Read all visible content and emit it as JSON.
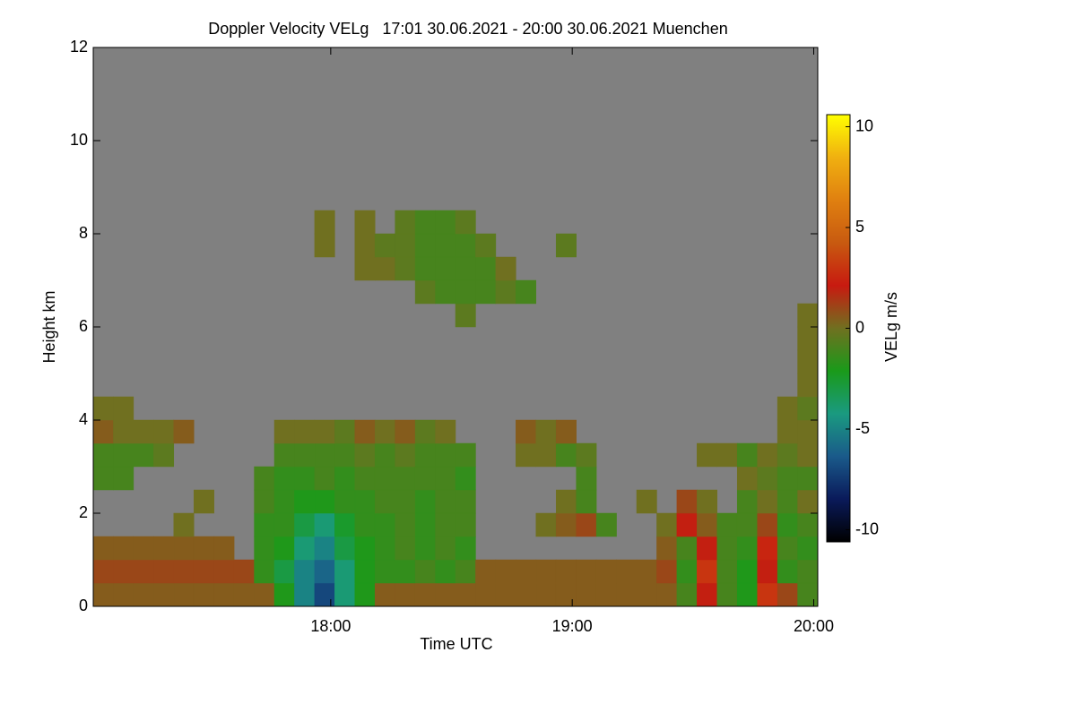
{
  "chart_data": {
    "type": "heatmap",
    "title": "Doppler Velocity VELg   17:01 30.06.2021 - 20:00 30.06.2021 Muenchen",
    "x_label": "Time UTC",
    "y_label": "Height km",
    "colorbar_label": "VELg m/s",
    "xlim": [
      1021,
      1201
    ],
    "ylim": [
      0,
      12
    ],
    "zlim": [
      -10.6,
      10.6
    ],
    "xticks": [
      {
        "value": 1080,
        "label": "18:00"
      },
      {
        "value": 1140,
        "label": "19:00"
      },
      {
        "value": 1200,
        "label": "20:00"
      }
    ],
    "yticks": [
      0,
      2,
      4,
      6,
      8,
      10,
      12
    ],
    "zticks": [
      -10,
      -5,
      0,
      5,
      10
    ],
    "background": "#808080",
    "colors": [
      "#000000",
      "#0a1a5a",
      "#1a5a8a",
      "#1a9a80",
      "#1a9a1a",
      "#707020",
      "#c81a10",
      "#c85a10",
      "#e08010",
      "#f0b010",
      "#ffff00"
    ],
    "x_edges": [
      1021,
      1026,
      1031,
      1036,
      1041,
      1046,
      1051,
      1056,
      1061,
      1066,
      1071,
      1076,
      1081,
      1086,
      1091,
      1096,
      1101,
      1106,
      1111,
      1116,
      1121,
      1126,
      1131,
      1136,
      1141,
      1146,
      1151,
      1156,
      1161,
      1166,
      1171,
      1176,
      1181,
      1186,
      1191,
      1196,
      1201
    ],
    "y_edges": [
      0,
      0.5,
      1,
      1.5,
      2,
      2.5,
      3,
      3.5,
      4,
      4.5,
      5,
      5.5,
      6,
      6.5,
      7,
      7.5,
      8,
      8.5,
      9,
      9.5,
      10,
      10.5,
      11,
      11.5,
      12
    ],
    "z": [
      [
        0.5,
        0.5,
        0.5,
        0.5,
        0.5,
        0.5,
        0.5,
        0.5,
        0.5,
        -2,
        -5,
        -7,
        -4,
        -2,
        0.5,
        0.5,
        0.5,
        0.5,
        0.5,
        0.5,
        0.5,
        0.5,
        0.5,
        0.5,
        0.5,
        0.5,
        0.5,
        0.5,
        0.5,
        -1,
        2,
        -1,
        -2,
        3,
        1,
        -1
      ],
      [
        1,
        1,
        1,
        1,
        1,
        1,
        1,
        1,
        -1.5,
        -3,
        -5,
        -6,
        -4,
        -2,
        -1.5,
        -1.5,
        -1,
        -1.5,
        -1,
        0.5,
        0.5,
        0.5,
        0.5,
        0.5,
        0.5,
        0.5,
        0.5,
        0.5,
        1,
        -1.5,
        3,
        -1,
        -2,
        2,
        -1.5,
        -1
      ],
      [
        0.5,
        0.5,
        0.5,
        0.5,
        0.5,
        0.5,
        0.5,
        null,
        -1.5,
        -2,
        -4,
        -5,
        -3,
        -2,
        -1.5,
        -1,
        -1.5,
        -1,
        -1.5,
        null,
        null,
        null,
        null,
        null,
        null,
        null,
        null,
        null,
        0.5,
        -1,
        2,
        -1,
        -1.5,
        2.5,
        -1,
        -1.5
      ],
      [
        null,
        null,
        null,
        null,
        0,
        null,
        null,
        null,
        -1.5,
        -1.5,
        -3,
        -4,
        -2.5,
        -1.5,
        -1.5,
        -1,
        -1.5,
        -1,
        -1,
        null,
        null,
        null,
        0,
        0.5,
        1,
        -1,
        null,
        null,
        0,
        2,
        0.5,
        -1,
        -1,
        1,
        -1.5,
        -1
      ],
      [
        null,
        null,
        null,
        null,
        null,
        0,
        null,
        null,
        -1,
        -1.5,
        -2,
        -2,
        -1.5,
        -1.5,
        -1,
        -1,
        -1.5,
        -1,
        -1,
        null,
        null,
        null,
        null,
        0,
        -1,
        null,
        null,
        0,
        null,
        1,
        0,
        null,
        -1,
        0,
        -1,
        0
      ],
      [
        -1,
        -1,
        null,
        null,
        null,
        null,
        null,
        null,
        -1,
        -1.5,
        -1.5,
        -1,
        -1.5,
        -1,
        -1,
        -1,
        -1,
        -1,
        -1.5,
        null,
        null,
        null,
        null,
        null,
        -1,
        null,
        null,
        null,
        null,
        null,
        null,
        null,
        0,
        -0.5,
        -1,
        -1
      ],
      [
        -1,
        -1,
        -1,
        -0.5,
        null,
        null,
        null,
        null,
        null,
        -1,
        -1,
        -1,
        -1,
        -0.5,
        -1,
        -0.5,
        -1,
        -1,
        -1,
        null,
        null,
        0,
        0,
        -1,
        -0.5,
        null,
        null,
        null,
        null,
        null,
        0,
        0,
        -1,
        0,
        -0.5,
        0
      ],
      [
        0.5,
        0,
        0,
        0,
        0.5,
        null,
        null,
        null,
        null,
        0,
        0,
        0,
        -0.5,
        0.5,
        0,
        0.5,
        -0.5,
        0,
        null,
        null,
        null,
        0.5,
        0,
        0.5,
        null,
        null,
        null,
        null,
        null,
        null,
        null,
        null,
        null,
        null,
        0,
        0
      ],
      [
        0,
        0,
        null,
        null,
        null,
        null,
        null,
        null,
        null,
        null,
        null,
        null,
        null,
        null,
        null,
        null,
        null,
        null,
        null,
        null,
        null,
        null,
        null,
        null,
        null,
        null,
        null,
        null,
        null,
        null,
        null,
        null,
        null,
        null,
        0,
        -0.5
      ],
      [
        null,
        null,
        null,
        null,
        null,
        null,
        null,
        null,
        null,
        null,
        null,
        null,
        null,
        null,
        null,
        null,
        null,
        null,
        null,
        null,
        null,
        null,
        null,
        null,
        null,
        null,
        null,
        null,
        null,
        null,
        null,
        null,
        null,
        null,
        null,
        0
      ],
      [
        null,
        null,
        null,
        null,
        null,
        null,
        null,
        null,
        null,
        null,
        null,
        null,
        null,
        null,
        null,
        null,
        null,
        null,
        null,
        null,
        null,
        null,
        null,
        null,
        null,
        null,
        null,
        null,
        null,
        null,
        null,
        null,
        null,
        null,
        null,
        0
      ],
      [
        null,
        null,
        null,
        null,
        null,
        null,
        null,
        null,
        null,
        null,
        null,
        null,
        null,
        null,
        null,
        null,
        null,
        null,
        null,
        null,
        null,
        null,
        null,
        null,
        null,
        null,
        null,
        null,
        null,
        null,
        null,
        null,
        null,
        null,
        null,
        0
      ],
      [
        null,
        null,
        null,
        null,
        null,
        null,
        null,
        null,
        null,
        null,
        null,
        null,
        null,
        null,
        null,
        null,
        null,
        null,
        -0.5,
        null,
        null,
        null,
        null,
        null,
        null,
        null,
        null,
        null,
        null,
        null,
        null,
        null,
        null,
        null,
        null,
        0
      ],
      [
        null,
        null,
        null,
        null,
        null,
        null,
        null,
        null,
        null,
        null,
        null,
        null,
        null,
        null,
        null,
        null,
        -0.5,
        -1,
        -1,
        -1,
        -0.5,
        -1,
        null,
        null,
        null,
        null,
        null,
        null,
        null,
        null,
        null,
        null,
        null,
        null,
        null,
        null
      ],
      [
        null,
        null,
        null,
        null,
        null,
        null,
        null,
        null,
        null,
        null,
        null,
        null,
        null,
        0,
        0,
        -0.5,
        -1,
        -1,
        -1,
        -1,
        0,
        null,
        null,
        null,
        null,
        null,
        null,
        null,
        null,
        null,
        null,
        null,
        null,
        null,
        null,
        null
      ],
      [
        null,
        null,
        null,
        null,
        null,
        null,
        null,
        null,
        null,
        null,
        null,
        0,
        null,
        0,
        -0.5,
        -0.5,
        -1,
        -1,
        -1,
        -0.5,
        null,
        null,
        null,
        -0.5,
        null,
        null,
        null,
        null,
        null,
        null,
        null,
        null,
        null,
        null,
        null,
        null
      ],
      [
        null,
        null,
        null,
        null,
        null,
        null,
        null,
        null,
        null,
        null,
        null,
        0,
        null,
        0,
        null,
        -0.5,
        -1,
        -1,
        -0.5,
        null,
        null,
        null,
        null,
        null,
        null,
        null,
        null,
        null,
        null,
        null,
        null,
        null,
        null,
        null,
        null,
        null
      ],
      [
        null,
        null,
        null,
        null,
        null,
        null,
        null,
        null,
        null,
        null,
        null,
        null,
        null,
        null,
        null,
        null,
        null,
        null,
        null,
        null,
        null,
        null,
        null,
        null,
        null,
        null,
        null,
        null,
        null,
        null,
        null,
        null,
        null,
        null,
        null,
        null
      ],
      [
        null,
        null,
        null,
        null,
        null,
        null,
        null,
        null,
        null,
        null,
        null,
        null,
        null,
        null,
        null,
        null,
        null,
        null,
        null,
        null,
        null,
        null,
        null,
        null,
        null,
        null,
        null,
        null,
        null,
        null,
        null,
        null,
        null,
        null,
        null,
        null
      ],
      [
        null,
        null,
        null,
        null,
        null,
        null,
        null,
        null,
        null,
        null,
        null,
        null,
        null,
        null,
        null,
        null,
        null,
        null,
        null,
        null,
        null,
        null,
        null,
        null,
        null,
        null,
        null,
        null,
        null,
        null,
        null,
        null,
        null,
        null,
        null,
        null
      ],
      [
        null,
        null,
        null,
        null,
        null,
        null,
        null,
        null,
        null,
        null,
        null,
        null,
        null,
        null,
        null,
        null,
        null,
        null,
        null,
        null,
        null,
        null,
        null,
        null,
        null,
        null,
        null,
        null,
        null,
        null,
        null,
        null,
        null,
        null,
        null,
        null
      ],
      [
        null,
        null,
        null,
        null,
        null,
        null,
        null,
        null,
        null,
        null,
        null,
        null,
        null,
        null,
        null,
        null,
        null,
        null,
        null,
        null,
        null,
        null,
        null,
        null,
        null,
        null,
        null,
        null,
        null,
        null,
        null,
        null,
        null,
        null,
        null,
        null
      ],
      [
        null,
        null,
        null,
        null,
        null,
        null,
        null,
        null,
        null,
        null,
        null,
        null,
        null,
        null,
        null,
        null,
        null,
        null,
        null,
        null,
        null,
        null,
        null,
        null,
        null,
        null,
        null,
        null,
        null,
        null,
        null,
        null,
        null,
        null,
        null,
        null
      ],
      [
        null,
        null,
        null,
        null,
        null,
        null,
        null,
        null,
        null,
        null,
        null,
        null,
        null,
        null,
        null,
        null,
        null,
        null,
        null,
        null,
        null,
        null,
        null,
        null,
        null,
        null,
        null,
        null,
        null,
        null,
        null,
        null,
        null,
        null,
        null,
        null
      ]
    ]
  }
}
